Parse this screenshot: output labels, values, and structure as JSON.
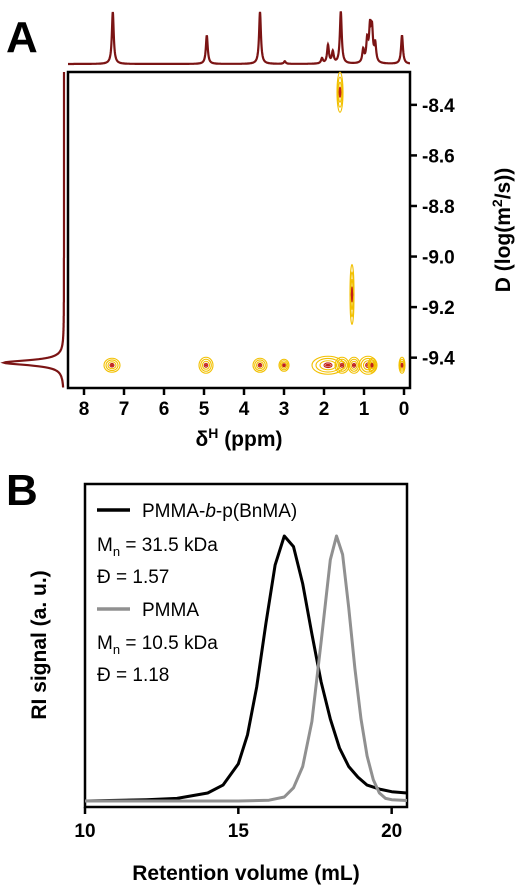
{
  "panel_a": {
    "letter": "A",
    "xlabel_main": "δ",
    "xlabel_sup": "H",
    "xlabel_unit": " (ppm)",
    "ylabel_pre": "D (log(m",
    "ylabel_sup": "2",
    "ylabel_post": "/s))",
    "colors": {
      "spectrum": "#7b1414",
      "contour_outer": "#f2c000",
      "contour_inner": "#c0201a"
    }
  },
  "panel_b": {
    "letter": "B",
    "xlabel": "Retention volume (mL)",
    "ylabel": "RI signal (a. u.)",
    "legend": {
      "s1_name_pre": "PMMA-",
      "s1_name_italic": "b",
      "s1_name_post": "-p(BnMA)",
      "s1_mn_pre": "M",
      "s1_mn_sub": "n",
      "s1_mn_post": " = 31.5 kDa",
      "s1_d": "Đ = 1.57",
      "s2_name": "PMMA",
      "s2_mn_pre": "M",
      "s2_mn_sub": "n",
      "s2_mn_post": " = 10.5 kDa",
      "s2_d": "Đ = 1.18"
    },
    "colors": {
      "series1": "#000000",
      "series2": "#909090"
    }
  },
  "chart_data": [
    {
      "type": "heatmap",
      "title": "",
      "xlabel": "δH (ppm)",
      "ylabel": "D (log(m2/s))",
      "xlim": [
        8.4,
        -0.15
      ],
      "ylim": [
        -9.52,
        -8.27
      ],
      "x_ticks": [
        8,
        7,
        6,
        5,
        4,
        3,
        2,
        1,
        0
      ],
      "y_ticks": [
        -8.4,
        -8.6,
        -8.8,
        -9.0,
        -9.2,
        -9.4
      ],
      "x_tick_labels": [
        "8",
        "7",
        "6",
        "5",
        "4",
        "3",
        "2",
        "1",
        "0"
      ],
      "y_tick_labels": [
        "-8.4",
        "-8.6",
        "-8.8",
        "-9.0",
        "-9.2",
        "-9.4"
      ],
      "grid": false,
      "dosy_peaks": [
        {
          "ppm": 7.3,
          "D": -9.43
        },
        {
          "ppm": 4.95,
          "D": -9.43
        },
        {
          "ppm": 3.6,
          "D": -9.43
        },
        {
          "ppm": 3.0,
          "D": -9.43
        },
        {
          "ppm": 1.9,
          "D": -9.43
        },
        {
          "ppm": 1.55,
          "D": -9.43
        },
        {
          "ppm": 1.25,
          "D": -9.43
        },
        {
          "ppm": 0.9,
          "D": -9.43
        },
        {
          "ppm": 0.8,
          "D": -9.43
        },
        {
          "ppm": 0.05,
          "D": -9.43
        },
        {
          "ppm": 1.6,
          "D": -8.35
        },
        {
          "ppm": 1.3,
          "D": -9.15
        }
      ],
      "top_projection_peaks": [
        {
          "ppm": 7.28,
          "height": 1.0
        },
        {
          "ppm": 4.93,
          "height": 0.55
        },
        {
          "ppm": 3.6,
          "height": 1.0
        },
        {
          "ppm": 2.98,
          "height": 0.05
        },
        {
          "ppm": 2.05,
          "height": 0.1
        },
        {
          "ppm": 1.9,
          "height": 0.35
        },
        {
          "ppm": 1.78,
          "height": 0.22
        },
        {
          "ppm": 1.58,
          "height": 1.0
        },
        {
          "ppm": 1.02,
          "height": 0.25
        },
        {
          "ppm": 0.92,
          "height": 0.42
        },
        {
          "ppm": 0.85,
          "height": 0.62
        },
        {
          "ppm": 0.8,
          "height": 0.6
        },
        {
          "ppm": 0.72,
          "height": 0.35
        },
        {
          "ppm": 0.05,
          "height": 0.55
        }
      ],
      "side_projection_peak_D": -9.42
    },
    {
      "type": "line",
      "title": "",
      "xlabel": "Retention volume (mL)",
      "ylabel": "RI signal (a. u.)",
      "xlim": [
        10,
        20.5
      ],
      "ylim": [
        0,
        1.1
      ],
      "x_ticks": [
        10,
        15,
        20
      ],
      "x_tick_labels": [
        "10",
        "15",
        "20"
      ],
      "grid": false,
      "legend_position": "top-left",
      "series": [
        {
          "name": "PMMA-b-p(BnMA)",
          "color": "#000000",
          "x": [
            10.0,
            12.0,
            13.0,
            14.0,
            14.5,
            15.0,
            15.3,
            15.6,
            15.9,
            16.2,
            16.5,
            16.8,
            17.1,
            17.4,
            17.7,
            18.0,
            18.3,
            18.6,
            18.9,
            19.2,
            19.6,
            20.0,
            20.5
          ],
          "y": [
            0.0,
            0.005,
            0.01,
            0.03,
            0.06,
            0.14,
            0.25,
            0.43,
            0.67,
            0.89,
            1.0,
            0.96,
            0.82,
            0.63,
            0.45,
            0.31,
            0.2,
            0.13,
            0.09,
            0.06,
            0.045,
            0.035,
            0.03
          ]
        },
        {
          "name": "PMMA",
          "color": "#909090",
          "x": [
            10.0,
            15.0,
            16.0,
            16.5,
            16.8,
            17.1,
            17.4,
            17.7,
            18.0,
            18.2,
            18.4,
            18.6,
            18.8,
            19.0,
            19.2,
            19.4,
            19.6,
            19.8,
            20.0,
            20.5
          ],
          "y": [
            0.0,
            0.0,
            0.003,
            0.015,
            0.05,
            0.13,
            0.3,
            0.6,
            0.91,
            1.0,
            0.93,
            0.73,
            0.5,
            0.31,
            0.17,
            0.08,
            0.03,
            0.01,
            0.005,
            0.002
          ]
        }
      ]
    }
  ]
}
